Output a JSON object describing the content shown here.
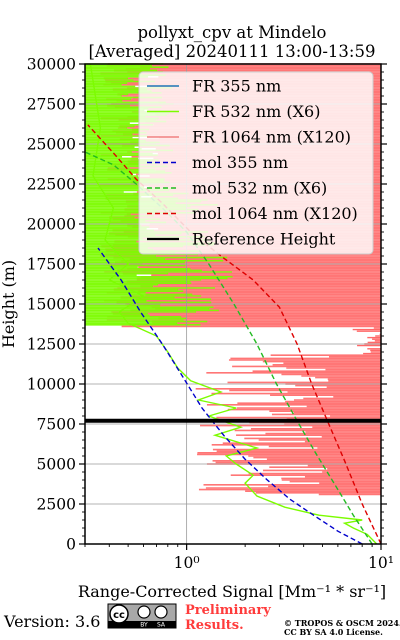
{
  "chart_data": {
    "type": "line",
    "title": "pollyxt_cpv at Mindelo",
    "subtitle": "[Averaged] 20240111 13:00-13:59",
    "ylabel": "Height (m)",
    "xlabel": "Range-Corrected Signal [Mm⁻¹ * sr⁻¹]",
    "xscale": "log",
    "xlim": [
      0.3,
      10
    ],
    "ylim": [
      0,
      30000
    ],
    "yticks": [
      0,
      2500,
      5000,
      7500,
      10000,
      12500,
      15000,
      17500,
      20000,
      22500,
      25000,
      27500,
      30000
    ],
    "ytick_labels": [
      "0",
      "2500",
      "5000",
      "7500",
      "10000",
      "12500",
      "15000",
      "17500",
      "20000",
      "22500",
      "25000",
      "27500",
      "30000"
    ],
    "xticks": [
      1,
      10
    ],
    "xtick_labels": [
      "10⁰",
      "10¹"
    ],
    "grid": true,
    "legend_position": "top-right",
    "reference_height": 7700,
    "series": [
      {
        "name": "FR 355 nm",
        "color": "#1f77b4",
        "style": "solid",
        "points": []
      },
      {
        "name": "FR 532 nm (X6)",
        "color": "#7cfc00",
        "style": "solid",
        "points": [
          [
            9.5,
            0
          ],
          [
            8.5,
            600
          ],
          [
            7.2,
            1000
          ],
          [
            6.5,
            1300
          ],
          [
            8.0,
            1500
          ],
          [
            4.8,
            1800
          ],
          [
            3.2,
            2300
          ],
          [
            2.3,
            3000
          ],
          [
            2.0,
            3800
          ],
          [
            2.2,
            4300
          ],
          [
            1.8,
            5000
          ],
          [
            1.6,
            5500
          ],
          [
            2.3,
            6000
          ],
          [
            1.4,
            6800
          ],
          [
            1.9,
            7300
          ],
          [
            1.3,
            8000
          ],
          [
            1.8,
            8500
          ],
          [
            1.15,
            9000
          ],
          [
            1.5,
            9500
          ],
          [
            1.05,
            10200
          ],
          [
            0.9,
            11000
          ],
          [
            0.8,
            12000
          ],
          [
            0.7,
            13000
          ],
          [
            0.5,
            13800
          ],
          [
            0.45,
            14500
          ],
          [
            0.6,
            15500
          ],
          [
            0.4,
            16500
          ],
          [
            0.5,
            17500
          ],
          [
            0.38,
            19000
          ],
          [
            0.42,
            21000
          ],
          [
            0.33,
            23000
          ],
          [
            0.36,
            26000
          ],
          [
            0.32,
            30000
          ]
        ]
      },
      {
        "name": "FR 1064 nm (X120)",
        "color": "#f08080",
        "style": "solid",
        "points": []
      },
      {
        "name": "mol 355 nm",
        "color": "#0000cc",
        "style": "dashed",
        "points": [
          [
            8.0,
            0
          ],
          [
            6.0,
            800
          ],
          [
            4.5,
            1800
          ],
          [
            3.4,
            2800
          ],
          [
            2.6,
            4000
          ],
          [
            2.0,
            5300
          ],
          [
            1.55,
            6800
          ],
          [
            1.2,
            8500
          ],
          [
            0.95,
            10500
          ],
          [
            0.75,
            12500
          ],
          [
            0.58,
            14500
          ],
          [
            0.46,
            16500
          ],
          [
            0.35,
            18500
          ]
        ]
      },
      {
        "name": "mol 532 nm (X6)",
        "color": "#22bb22",
        "style": "dashed",
        "points": [
          [
            9.0,
            0
          ],
          [
            7.2,
            1800
          ],
          [
            5.8,
            3700
          ],
          [
            4.6,
            5700
          ],
          [
            3.7,
            7700
          ],
          [
            2.9,
            10000
          ],
          [
            2.3,
            12500
          ],
          [
            1.75,
            15000
          ],
          [
            1.3,
            17500
          ],
          [
            1.0,
            19500
          ],
          [
            0.75,
            21000
          ],
          [
            0.55,
            22500
          ],
          [
            0.42,
            23700
          ],
          [
            0.3,
            24500
          ]
        ]
      },
      {
        "name": "mol 1064 nm (X120)",
        "color": "#dd0000",
        "style": "dashed",
        "points": [
          [
            10.0,
            0
          ],
          [
            8.0,
            2500
          ],
          [
            6.5,
            5200
          ],
          [
            5.3,
            7700
          ],
          [
            4.4,
            10000
          ],
          [
            3.7,
            12500
          ],
          [
            3.0,
            14800
          ],
          [
            2.2,
            16500
          ],
          [
            1.5,
            18000
          ],
          [
            1.05,
            19500
          ],
          [
            0.75,
            21300
          ],
          [
            0.55,
            22800
          ],
          [
            0.43,
            24300
          ],
          [
            0.31,
            26200
          ]
        ]
      },
      {
        "name": "Reference Height",
        "color": "#000000",
        "style": "solid",
        "points": [
          [
            0.3,
            7700
          ],
          [
            10,
            7700
          ]
        ]
      }
    ]
  },
  "footer": {
    "version": "Version: 3.6",
    "license_badge": "cc-by-sa-icon",
    "prelim_line1": "Preliminary",
    "prelim_line2": "Results.",
    "copyright_line1": "© TROPOS & OSCM 2024.",
    "copyright_line2": "CC BY SA 4.0 License."
  }
}
